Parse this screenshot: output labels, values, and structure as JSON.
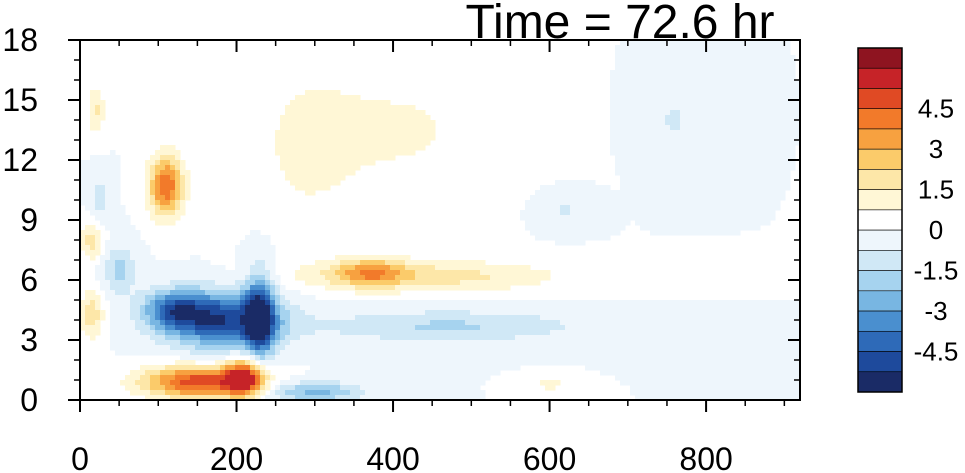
{
  "chart_data": {
    "type": "heatmap",
    "title": "Time = 72.6 hr",
    "xlabel": "",
    "ylabel": "",
    "xlim": [
      0,
      920
    ],
    "ylim": [
      0,
      18
    ],
    "x_ticks": [
      0,
      200,
      400,
      600,
      800
    ],
    "x_tick_labels": [
      "0",
      "200",
      "400",
      "600",
      "800"
    ],
    "y_ticks": [
      0,
      3,
      6,
      9,
      12,
      15,
      18
    ],
    "y_tick_labels": [
      "0",
      "3",
      "6",
      "9",
      "12",
      "15",
      "18"
    ],
    "grid": false,
    "colorbar": {
      "placement": "right",
      "levels": [
        -5.25,
        -4.5,
        -3.75,
        -3,
        -2.25,
        -1.5,
        -0.75,
        0,
        0.75,
        1.5,
        2.25,
        3,
        3.75,
        4.5,
        5.25
      ],
      "tick_values": [
        4.5,
        3,
        1.5,
        0,
        -1.5,
        -3,
        -4.5
      ],
      "tick_labels": [
        "4.5",
        "3",
        "1.5",
        "0",
        "-1.5",
        "-3",
        "-4.5"
      ],
      "colors": [
        "#1a2b66",
        "#1e4a9c",
        "#2e6ab8",
        "#4a8fcf",
        "#78b6e2",
        "#a6d3ef",
        "#d0e8f6",
        "#eef6fc",
        "#ffffff",
        "#fff7d6",
        "#fde7a8",
        "#fbcb6a",
        "#f7a140",
        "#f27a2a",
        "#e04a24",
        "#c62328",
        "#8e1420"
      ]
    },
    "features": [
      {
        "kind": "blob",
        "x": 150,
        "y": 0.9,
        "rx": 70,
        "ry": 0.8,
        "value": 5.0
      },
      {
        "kind": "blob",
        "x": 210,
        "y": 1.1,
        "rx": 25,
        "ry": 0.9,
        "value": 5.2
      },
      {
        "kind": "blob",
        "x": 185,
        "y": 4.0,
        "rx": 70,
        "ry": 1.4,
        "value": -5.0
      },
      {
        "kind": "blob",
        "x": 120,
        "y": 4.5,
        "rx": 40,
        "ry": 1.0,
        "value": -3.5
      },
      {
        "kind": "blob",
        "x": 230,
        "y": 4.2,
        "rx": 18,
        "ry": 2.2,
        "value": -4.5
      },
      {
        "kind": "blob",
        "x": 110,
        "y": 10.7,
        "rx": 22,
        "ry": 1.5,
        "value": 4.5
      },
      {
        "kind": "blob",
        "x": 15,
        "y": 4.3,
        "rx": 15,
        "ry": 1.2,
        "value": 2.0
      },
      {
        "kind": "blob",
        "x": 15,
        "y": 8.0,
        "rx": 15,
        "ry": 1.0,
        "value": 1.8
      },
      {
        "kind": "blob",
        "x": 20,
        "y": 14.5,
        "rx": 12,
        "ry": 1.2,
        "value": 1.6
      },
      {
        "kind": "blob",
        "x": 25,
        "y": 10.0,
        "rx": 12,
        "ry": 1.2,
        "value": -1.2
      },
      {
        "kind": "blob",
        "x": 50,
        "y": 6.5,
        "rx": 20,
        "ry": 1.2,
        "value": -1.8
      },
      {
        "kind": "blob",
        "x": 440,
        "y": 6.2,
        "rx": 170,
        "ry": 0.8,
        "value": 1.9
      },
      {
        "kind": "blob",
        "x": 370,
        "y": 6.4,
        "rx": 45,
        "ry": 0.7,
        "value": 2.6
      },
      {
        "kind": "blob",
        "x": 470,
        "y": 3.7,
        "rx": 170,
        "ry": 0.8,
        "value": -1.6
      },
      {
        "kind": "blob",
        "x": 300,
        "y": 0.4,
        "rx": 60,
        "ry": 0.5,
        "value": -2.5
      },
      {
        "kind": "blob",
        "x": 600,
        "y": 0.8,
        "rx": 25,
        "ry": 0.4,
        "value": 1.0
      },
      {
        "kind": "blob",
        "x": 400,
        "y": 13.5,
        "rx": 130,
        "ry": 3.0,
        "value": 0.9
      },
      {
        "kind": "blob",
        "x": 290,
        "y": 12.5,
        "rx": 60,
        "ry": 4.0,
        "value": 0.8
      },
      {
        "kind": "blob",
        "x": 760,
        "y": 14.0,
        "rx": 40,
        "ry": 2.0,
        "value": -0.8
      },
      {
        "kind": "blob",
        "x": 620,
        "y": 9.5,
        "rx": 30,
        "ry": 0.8,
        "value": -0.8
      }
    ]
  }
}
